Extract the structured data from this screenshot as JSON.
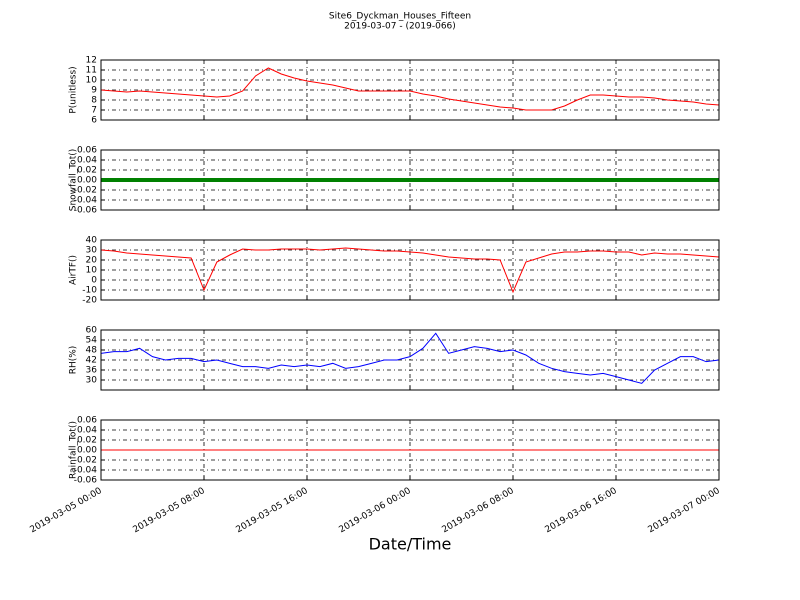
{
  "chart_data": [
    {
      "type": "line",
      "title": "Site6_Dyckman_Houses_Fifteen",
      "subtitle": "2019-03-07 - (2019-066)",
      "y_label": "P(unitless)",
      "x": [
        "2019-03-05 00:00",
        "2019-03-05 01:00",
        "2019-03-05 02:00",
        "2019-03-05 03:00",
        "2019-03-05 04:00",
        "2019-03-05 05:00",
        "2019-03-05 06:00",
        "2019-03-05 07:00",
        "2019-03-05 08:00",
        "2019-03-05 09:00",
        "2019-03-05 10:00",
        "2019-03-05 11:00",
        "2019-03-05 12:00",
        "2019-03-05 13:00",
        "2019-03-05 14:00",
        "2019-03-05 15:00",
        "2019-03-05 16:00",
        "2019-03-05 17:00",
        "2019-03-05 18:00",
        "2019-03-05 19:00",
        "2019-03-05 20:00",
        "2019-03-05 21:00",
        "2019-03-05 22:00",
        "2019-03-05 23:00",
        "2019-03-06 00:00",
        "2019-03-06 01:00",
        "2019-03-06 02:00",
        "2019-03-06 03:00",
        "2019-03-06 04:00",
        "2019-03-06 05:00",
        "2019-03-06 06:00",
        "2019-03-06 07:00",
        "2019-03-06 08:00",
        "2019-03-06 09:00",
        "2019-03-06 10:00",
        "2019-03-06 11:00",
        "2019-03-06 12:00",
        "2019-03-06 13:00",
        "2019-03-06 14:00",
        "2019-03-06 15:00",
        "2019-03-06 16:00",
        "2019-03-06 17:00",
        "2019-03-06 18:00",
        "2019-03-06 19:00",
        "2019-03-06 20:00",
        "2019-03-06 21:00",
        "2019-03-06 22:00",
        "2019-03-06 23:00",
        "2019-03-07 00:00"
      ],
      "series": [
        {
          "color": "#ff0000",
          "values": [
            9.0,
            8.9,
            8.8,
            8.9,
            8.8,
            8.7,
            8.6,
            8.5,
            8.4,
            8.3,
            8.4,
            8.9,
            10.4,
            11.2,
            10.6,
            10.2,
            9.9,
            9.7,
            9.5,
            9.2,
            8.9,
            8.9,
            8.9,
            8.9,
            8.9,
            8.6,
            8.4,
            8.1,
            7.9,
            7.7,
            7.5,
            7.3,
            7.2,
            7.0,
            7.0,
            7.0,
            7.4,
            8.0,
            8.5,
            8.5,
            8.4,
            8.3,
            8.3,
            8.2,
            8.0,
            7.9,
            7.8,
            7.6,
            7.5
          ]
        }
      ],
      "ylim": [
        6,
        12
      ],
      "yticks": [
        6,
        7,
        8,
        9,
        10,
        11,
        12
      ],
      "grid": true
    },
    {
      "type": "line",
      "y_label": "Snowfall_Tot()",
      "x": [
        "2019-03-05 00:00",
        "2019-03-05 06:00",
        "2019-03-05 12:00",
        "2019-03-05 18:00",
        "2019-03-06 00:00",
        "2019-03-06 06:00",
        "2019-03-06 12:00",
        "2019-03-06 18:00",
        "2019-03-07 00:00"
      ],
      "series": [
        {
          "color": "#008000",
          "values": [
            0,
            0,
            0,
            0,
            0,
            0,
            0,
            0,
            0
          ]
        }
      ],
      "ylim": [
        -0.06,
        0.06
      ],
      "yticks": [
        -0.06,
        -0.04,
        -0.02,
        {
          "value": 0,
          "label": "0.00"
        },
        0.02,
        0.04,
        0.06
      ],
      "grid": true
    },
    {
      "type": "line",
      "y_label": "AirTF()",
      "x": [
        "2019-03-05 00:00",
        "2019-03-05 01:00",
        "2019-03-05 02:00",
        "2019-03-05 03:00",
        "2019-03-05 04:00",
        "2019-03-05 05:00",
        "2019-03-05 06:00",
        "2019-03-05 07:00",
        "2019-03-05 08:00",
        "2019-03-05 09:00",
        "2019-03-05 10:00",
        "2019-03-05 11:00",
        "2019-03-05 12:00",
        "2019-03-05 13:00",
        "2019-03-05 14:00",
        "2019-03-05 15:00",
        "2019-03-05 16:00",
        "2019-03-05 17:00",
        "2019-03-05 18:00",
        "2019-03-05 19:00",
        "2019-03-05 20:00",
        "2019-03-05 21:00",
        "2019-03-05 22:00",
        "2019-03-05 23:00",
        "2019-03-06 00:00",
        "2019-03-06 01:00",
        "2019-03-06 02:00",
        "2019-03-06 03:00",
        "2019-03-06 04:00",
        "2019-03-06 05:00",
        "2019-03-06 06:00",
        "2019-03-06 07:00",
        "2019-03-06 08:00",
        "2019-03-06 09:00",
        "2019-03-06 10:00",
        "2019-03-06 11:00",
        "2019-03-06 12:00",
        "2019-03-06 13:00",
        "2019-03-06 14:00",
        "2019-03-06 15:00",
        "2019-03-06 16:00",
        "2019-03-06 17:00",
        "2019-03-06 18:00",
        "2019-03-06 19:00",
        "2019-03-06 20:00",
        "2019-03-06 21:00",
        "2019-03-06 22:00",
        "2019-03-06 23:00",
        "2019-03-07 00:00"
      ],
      "series": [
        {
          "color": "#ff0000",
          "values": [
            30,
            29,
            27,
            26,
            25,
            24,
            23,
            22,
            -10,
            18,
            25,
            31,
            30,
            30,
            31,
            31,
            31,
            30,
            31,
            32,
            31,
            30,
            29,
            29,
            28,
            27,
            25,
            23,
            22,
            21,
            21,
            20,
            -12,
            18,
            22,
            26,
            28,
            28,
            29,
            29,
            28,
            28,
            25,
            27,
            26,
            26,
            25,
            24,
            23
          ]
        }
      ],
      "ylim": [
        -20,
        40
      ],
      "yticks": [
        -20,
        -10,
        0,
        10,
        20,
        30,
        40
      ],
      "grid": true
    },
    {
      "type": "line",
      "y_label": "RH(%)",
      "x": [
        "2019-03-05 00:00",
        "2019-03-05 01:00",
        "2019-03-05 02:00",
        "2019-03-05 03:00",
        "2019-03-05 04:00",
        "2019-03-05 05:00",
        "2019-03-05 06:00",
        "2019-03-05 07:00",
        "2019-03-05 08:00",
        "2019-03-05 09:00",
        "2019-03-05 10:00",
        "2019-03-05 11:00",
        "2019-03-05 12:00",
        "2019-03-05 13:00",
        "2019-03-05 14:00",
        "2019-03-05 15:00",
        "2019-03-05 16:00",
        "2019-03-05 17:00",
        "2019-03-05 18:00",
        "2019-03-05 19:00",
        "2019-03-05 20:00",
        "2019-03-05 21:00",
        "2019-03-05 22:00",
        "2019-03-05 23:00",
        "2019-03-06 00:00",
        "2019-03-06 01:00",
        "2019-03-06 02:00",
        "2019-03-06 03:00",
        "2019-03-06 04:00",
        "2019-03-06 05:00",
        "2019-03-06 06:00",
        "2019-03-06 07:00",
        "2019-03-06 08:00",
        "2019-03-06 09:00",
        "2019-03-06 10:00",
        "2019-03-06 11:00",
        "2019-03-06 12:00",
        "2019-03-06 13:00",
        "2019-03-06 14:00",
        "2019-03-06 15:00",
        "2019-03-06 16:00",
        "2019-03-06 17:00",
        "2019-03-06 18:00",
        "2019-03-06 19:00",
        "2019-03-06 20:00",
        "2019-03-06 21:00",
        "2019-03-06 22:00",
        "2019-03-06 23:00",
        "2019-03-07 00:00"
      ],
      "series": [
        {
          "color": "#0000ff",
          "values": [
            46,
            47,
            47,
            49,
            44,
            42,
            43,
            43,
            41,
            42,
            40,
            38,
            38,
            37,
            39,
            38,
            39,
            38,
            40,
            37,
            38,
            40,
            42,
            42,
            44,
            49,
            58,
            46,
            48,
            50,
            49,
            47,
            48,
            45,
            40,
            37,
            35,
            34,
            33,
            34,
            32,
            30,
            28,
            36,
            40,
            44,
            44,
            41,
            42
          ]
        }
      ],
      "ylim": [
        24,
        60
      ],
      "yticks": [
        30,
        36,
        42,
        48,
        54,
        60
      ],
      "grid": true
    },
    {
      "type": "line",
      "y_label": "Rainfall_Tot()",
      "x_label": "Date/Time",
      "x": [
        "2019-03-05 00:00",
        "2019-03-05 06:00",
        "2019-03-05 12:00",
        "2019-03-05 18:00",
        "2019-03-06 00:00",
        "2019-03-06 06:00",
        "2019-03-06 12:00",
        "2019-03-06 18:00",
        "2019-03-07 00:00"
      ],
      "series": [
        {
          "color": "#ff0000",
          "values": [
            0,
            0,
            0,
            0,
            0,
            0,
            0,
            0,
            0
          ]
        }
      ],
      "ylim": [
        -0.06,
        0.06
      ],
      "yticks": [
        -0.06,
        -0.04,
        -0.02,
        {
          "value": 0,
          "label": "0.00"
        },
        0.02,
        0.04,
        0.06
      ],
      "grid": true,
      "xlim": [
        "2019-03-05 00:00",
        "2019-03-07 00:00"
      ],
      "xticks": [
        "2019-03-05 00:00",
        "2019-03-05 08:00",
        "2019-03-05 16:00",
        "2019-03-06 00:00",
        "2019-03-06 08:00",
        "2019-03-06 16:00",
        "2019-03-07 00:00"
      ]
    }
  ]
}
